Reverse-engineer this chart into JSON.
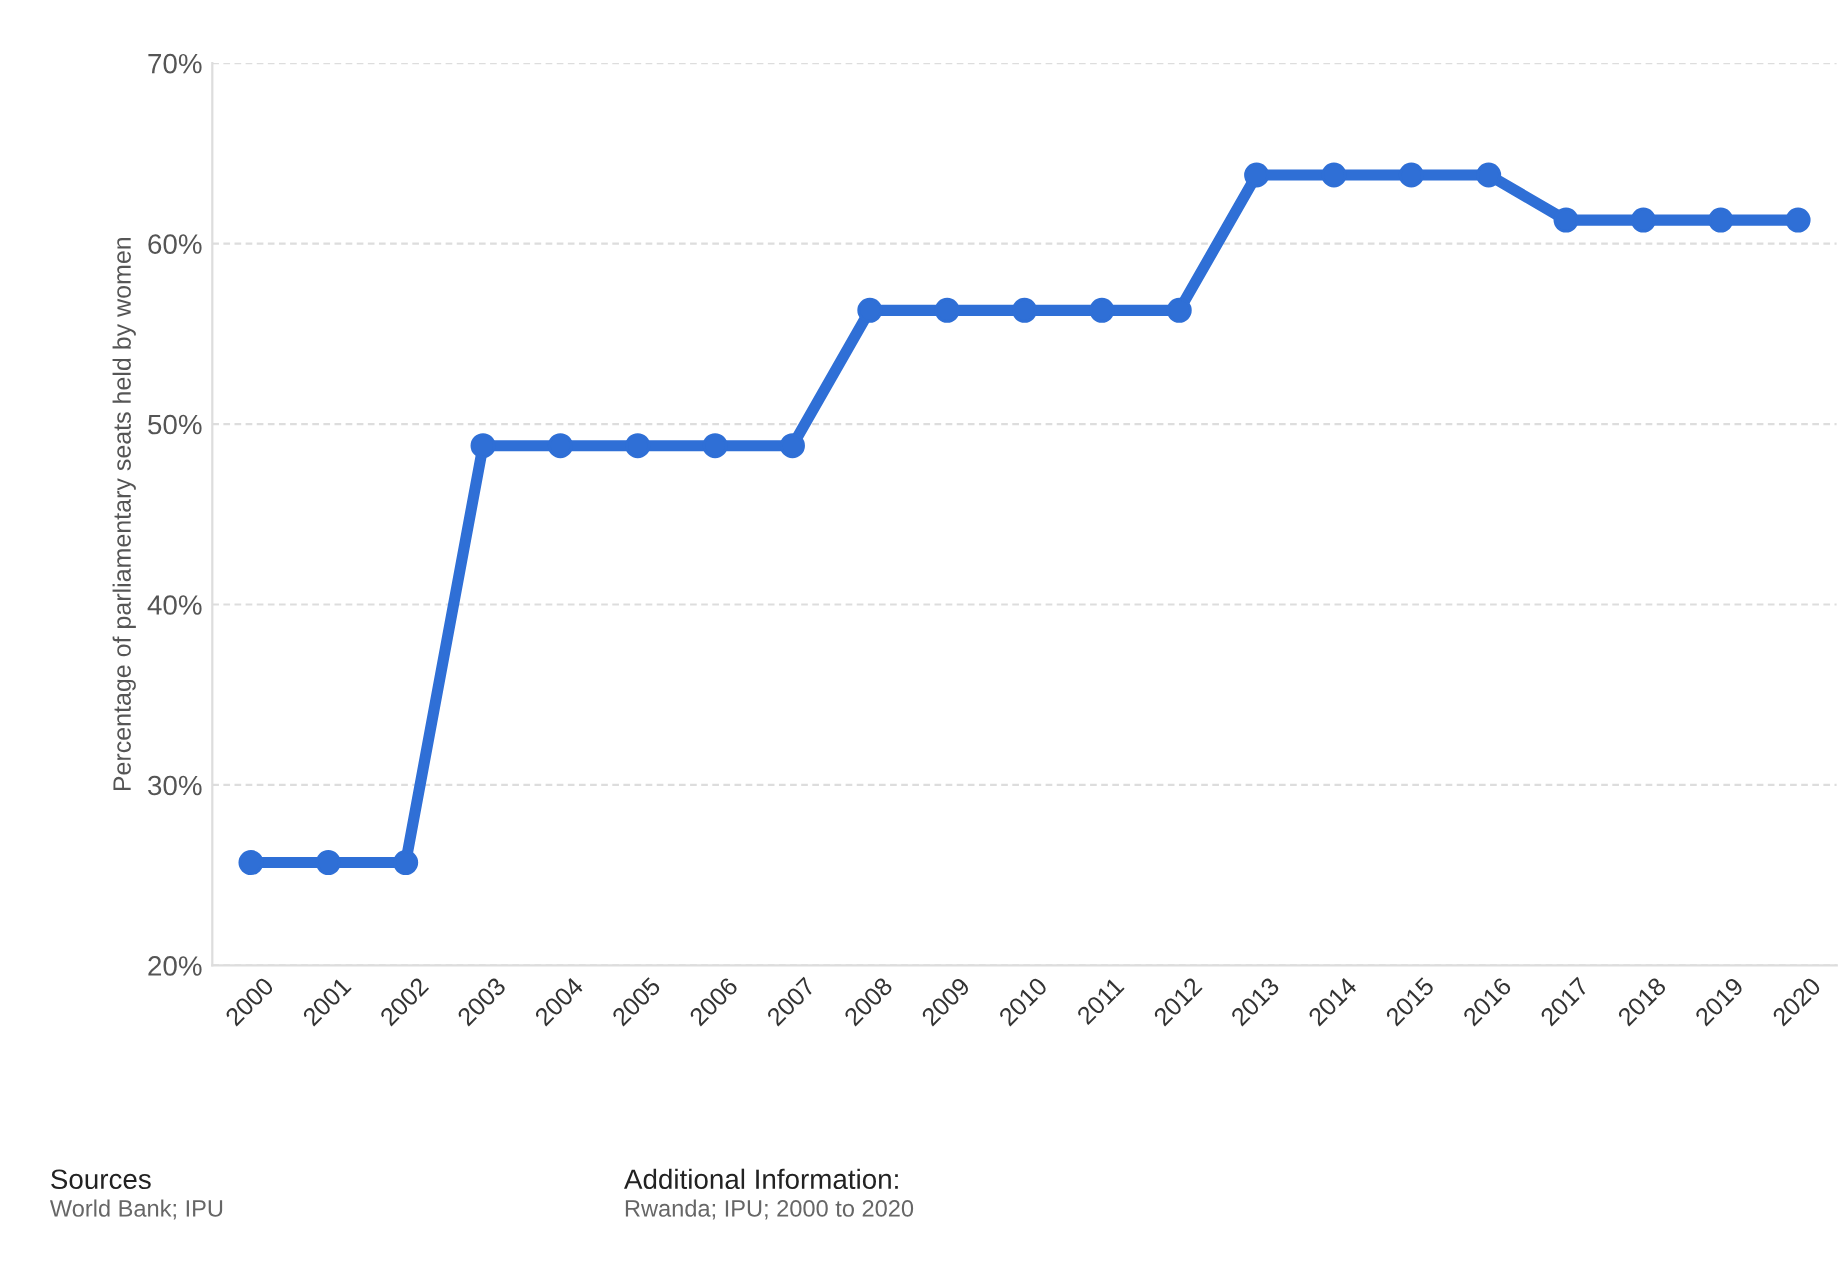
{
  "chart_data": {
    "type": "line",
    "ylabel": "Percentage of parliamentary seats held by women",
    "categories": [
      "2000",
      "2001",
      "2002",
      "2003",
      "2004",
      "2005",
      "2006",
      "2007",
      "2008",
      "2009",
      "2010",
      "2011",
      "2012",
      "2013",
      "2014",
      "2015",
      "2016",
      "2017",
      "2018",
      "2019",
      "2020"
    ],
    "series": [
      {
        "color": "#2f6fd6",
        "values": [
          25.7,
          25.7,
          25.7,
          48.8,
          48.8,
          48.8,
          48.8,
          48.8,
          56.3,
          56.3,
          56.3,
          56.3,
          56.3,
          63.8,
          63.8,
          63.8,
          63.8,
          61.3,
          61.3,
          61.3,
          61.3
        ]
      }
    ],
    "ylim": [
      20,
      70
    ],
    "yticks": [
      {
        "value": 20,
        "label": "20%"
      },
      {
        "value": 30,
        "label": "30%"
      },
      {
        "value": 40,
        "label": "40%"
      },
      {
        "value": 50,
        "label": "50%"
      },
      {
        "value": 60,
        "label": "60%"
      },
      {
        "value": 70,
        "label": "70%"
      }
    ],
    "grid": "y",
    "marker": "circle",
    "line_style": "solid",
    "annotations": [
      "Sources",
      "World Bank; IPU",
      "Additional Information:",
      "Rwanda; IPU; 2000 to 2020"
    ]
  }
}
